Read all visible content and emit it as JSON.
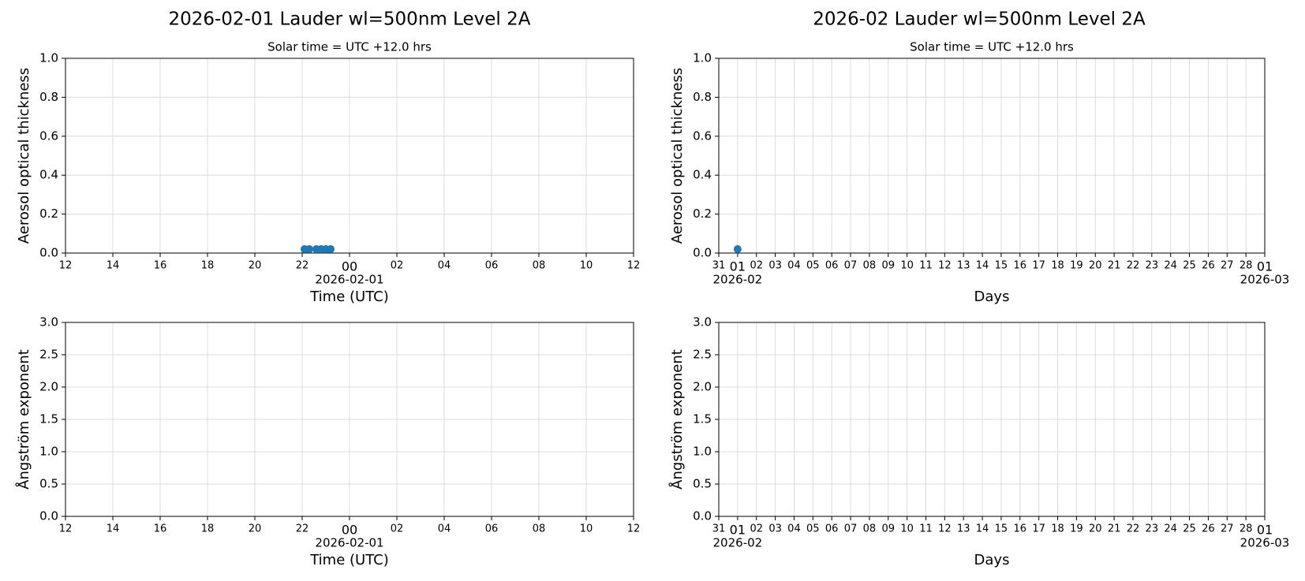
{
  "chart_data": [
    {
      "type": "scatter",
      "title": "2026-02-01  Lauder  wl=500nm  Level 2A",
      "subtitle": "Solar time = UTC +12.0 hrs",
      "xlabel": "Time (UTC)",
      "ylabel": "Aerosol optical thickness",
      "xlim": [
        12,
        36
      ],
      "xticks": [
        12,
        14,
        16,
        18,
        20,
        22,
        {
          "value": 24,
          "label": "00"
        },
        {
          "value": 26,
          "label": "02"
        },
        {
          "value": 28,
          "label": "04"
        },
        {
          "value": 30,
          "label": "06"
        },
        {
          "value": 32,
          "label": "08"
        },
        {
          "value": 34,
          "label": "10"
        },
        {
          "value": 36,
          "label": "12"
        }
      ],
      "xsubticks": [
        {
          "value": 24,
          "label": "2026-02-01"
        }
      ],
      "ylim": [
        0,
        1
      ],
      "yticks": [
        {
          "value": 0,
          "label": "0.0"
        },
        0.2,
        0.4,
        0.6,
        0.8,
        {
          "value": 1,
          "label": "1.0"
        }
      ],
      "grid": true,
      "series": [
        {
          "color": "#1f77b4",
          "x": [
            22.1,
            22.3,
            22.6,
            22.8,
            23.0,
            23.2
          ],
          "values": [
            0.02,
            0.02,
            0.02,
            0.02,
            0.02,
            0.02
          ]
        }
      ]
    },
    {
      "type": "scatter",
      "title": "2026-02  Lauder  wl=500nm  Level 2A",
      "subtitle": "Solar time = UTC +12.0 hrs",
      "xlabel": "Days",
      "ylabel": "Aerosol optical thickness",
      "xlim": [
        0,
        29
      ],
      "xticks": [
        {
          "value": 0,
          "label": "31"
        },
        {
          "value": 1,
          "label": "01"
        },
        {
          "value": 2,
          "label": "02"
        },
        {
          "value": 3,
          "label": "03"
        },
        {
          "value": 4,
          "label": "04"
        },
        {
          "value": 5,
          "label": "05"
        },
        {
          "value": 6,
          "label": "06"
        },
        {
          "value": 7,
          "label": "07"
        },
        {
          "value": 8,
          "label": "08"
        },
        {
          "value": 9,
          "label": "09"
        },
        10,
        11,
        12,
        13,
        14,
        15,
        16,
        17,
        18,
        19,
        20,
        21,
        22,
        23,
        24,
        25,
        26,
        27,
        28,
        {
          "value": 29,
          "label": "01"
        }
      ],
      "xsubticks": [
        {
          "value": 1,
          "label": "2026-02"
        },
        {
          "value": 29,
          "label": "2026-03"
        }
      ],
      "ylim": [
        0,
        1
      ],
      "yticks": [
        {
          "value": 0,
          "label": "0.0"
        },
        0.2,
        0.4,
        0.6,
        0.8,
        {
          "value": 1,
          "label": "1.0"
        }
      ],
      "grid": true,
      "series": [
        {
          "color": "#1f77b4",
          "x": [
            1
          ],
          "values": [
            0.02
          ]
        }
      ]
    },
    {
      "type": "scatter",
      "xlabel": "Time (UTC)",
      "ylabel": "Ångström exponent",
      "xlim": [
        12,
        36
      ],
      "xticks": [
        12,
        14,
        16,
        18,
        20,
        22,
        {
          "value": 24,
          "label": "00"
        },
        {
          "value": 26,
          "label": "02"
        },
        {
          "value": 28,
          "label": "04"
        },
        {
          "value": 30,
          "label": "06"
        },
        {
          "value": 32,
          "label": "08"
        },
        {
          "value": 34,
          "label": "10"
        },
        {
          "value": 36,
          "label": "12"
        }
      ],
      "xsubticks": [
        {
          "value": 24,
          "label": "2026-02-01"
        }
      ],
      "ylim": [
        0,
        3
      ],
      "yticks": [
        {
          "value": 0,
          "label": "0.0"
        },
        0.5,
        {
          "value": 1,
          "label": "1.0"
        },
        1.5,
        {
          "value": 2,
          "label": "2.0"
        },
        2.5,
        {
          "value": 3,
          "label": "3.0"
        }
      ],
      "grid": true
    },
    {
      "type": "scatter",
      "xlabel": "Days",
      "ylabel": "Ångström exponent",
      "xlim": [
        0,
        29
      ],
      "xticks": [
        {
          "value": 0,
          "label": "31"
        },
        {
          "value": 1,
          "label": "01"
        },
        {
          "value": 2,
          "label": "02"
        },
        {
          "value": 3,
          "label": "03"
        },
        {
          "value": 4,
          "label": "04"
        },
        {
          "value": 5,
          "label": "05"
        },
        {
          "value": 6,
          "label": "06"
        },
        {
          "value": 7,
          "label": "07"
        },
        {
          "value": 8,
          "label": "08"
        },
        {
          "value": 9,
          "label": "09"
        },
        10,
        11,
        12,
        13,
        14,
        15,
        16,
        17,
        18,
        19,
        20,
        21,
        22,
        23,
        24,
        25,
        26,
        27,
        28,
        {
          "value": 29,
          "label": "01"
        }
      ],
      "xsubticks": [
        {
          "value": 1,
          "label": "2026-02"
        },
        {
          "value": 29,
          "label": "2026-03"
        }
      ],
      "ylim": [
        0,
        3
      ],
      "yticks": [
        {
          "value": 0,
          "label": "0.0"
        },
        0.5,
        {
          "value": 1,
          "label": "1.0"
        },
        1.5,
        {
          "value": 2,
          "label": "2.0"
        },
        2.5,
        {
          "value": 3,
          "label": "3.0"
        }
      ],
      "grid": true
    }
  ]
}
